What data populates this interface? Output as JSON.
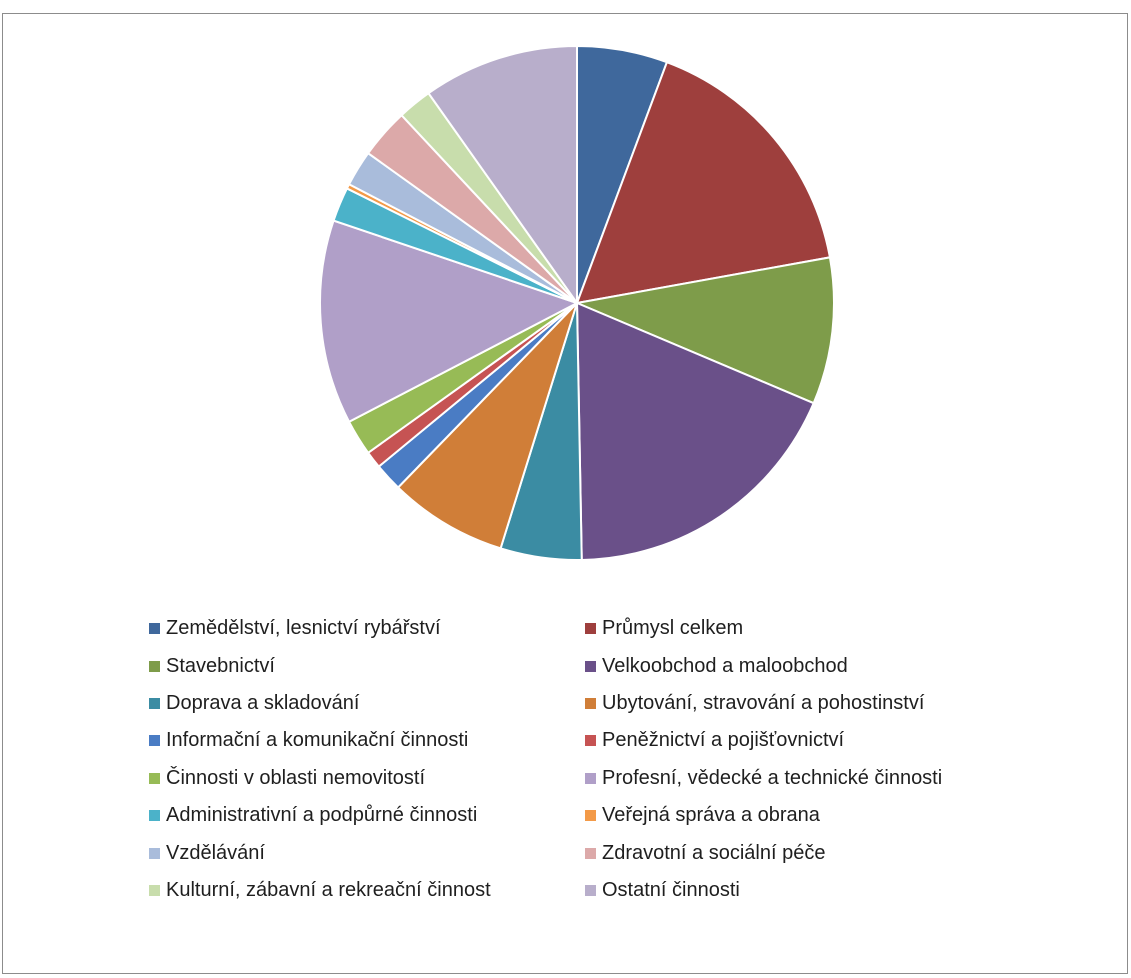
{
  "chart_data": {
    "type": "pie",
    "title": "",
    "legend_position": "bottom",
    "categories": [
      "Zemědělství, lesnictví rybářství",
      "Průmysl celkem",
      "Stavebnictví",
      "Velkoobchod a maloobchod",
      "Doprava a skladování",
      "Ubytování, stravování a pohostinství",
      "Informační a komunikační činnosti",
      "Peněžnictví a pojišťovnictví",
      "Činnosti v oblasti nemovitostí",
      "Profesní, vědecké a technické činnosti",
      "Administrativní a podpůrné činnosti",
      "Veřejná správa a obrana",
      "Vzdělávání",
      "Zdravotní a sociální péče",
      "Kulturní, zábavní a rekreační činnost",
      "Ostatní činnosti"
    ],
    "values": [
      5.8,
      16.8,
      9.4,
      18.7,
      5.2,
      7.6,
      1.8,
      1.1,
      2.3,
      13.1,
      2.2,
      0.3,
      2.3,
      3.2,
      2.2,
      10.0
    ],
    "colors": [
      "#3f689c",
      "#9e3f3d",
      "#7e9c4a",
      "#6a5089",
      "#3b8ca3",
      "#d07e38",
      "#4a7cc4",
      "#c65353",
      "#97bb56",
      "#b09fc8",
      "#4bb2c9",
      "#f39a48",
      "#a9bcdb",
      "#dca9a9",
      "#c8ddac",
      "#b8aecb"
    ]
  }
}
